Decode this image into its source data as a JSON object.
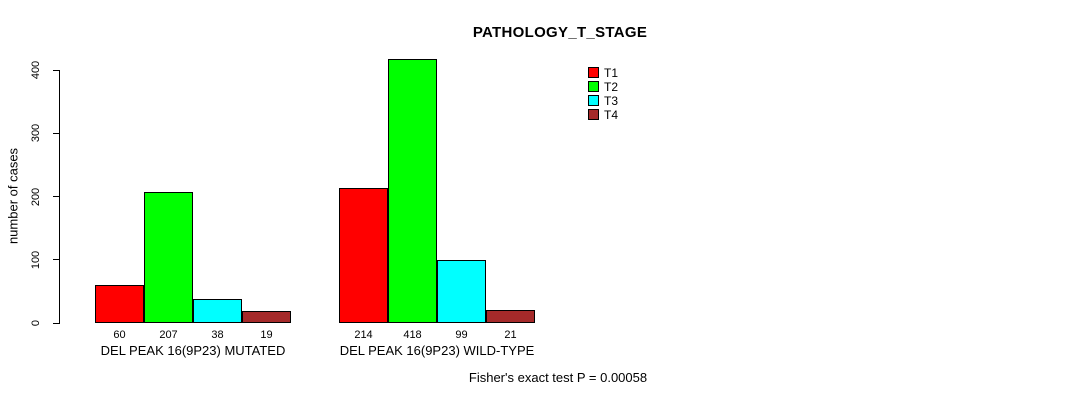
{
  "title": "PATHOLOGY_T_STAGE",
  "footer": {
    "stat_text": "Fisher's exact test P = 0.00058"
  },
  "colors": {
    "t1": "#FF0000",
    "t2": "#00FF00",
    "t3": "#00FFFF",
    "t4": "#A52A2A",
    "axis": "#000000",
    "background": "#FFFFFF"
  },
  "chart_data": {
    "type": "bar",
    "title": "PATHOLOGY_T_STAGE",
    "xlabel": "",
    "ylabel": "number of cases",
    "ylim": [
      0,
      400
    ],
    "yticks": [
      0,
      100,
      200,
      300,
      400
    ],
    "grid": false,
    "legend_position": "top-right",
    "categories": [
      "DEL PEAK 16(9P23) MUTATED",
      "DEL PEAK 16(9P23) WILD-TYPE"
    ],
    "series": [
      {
        "name": "T1",
        "color": "#FF0000",
        "values": [
          60,
          214
        ]
      },
      {
        "name": "T2",
        "color": "#00FF00",
        "values": [
          207,
          418
        ]
      },
      {
        "name": "T3",
        "color": "#00FFFF",
        "values": [
          38,
          99
        ]
      },
      {
        "name": "T4",
        "color": "#A52A2A",
        "values": [
          19,
          21
        ]
      }
    ],
    "bar_value_labels": {
      "DEL PEAK 16(9P23) MUTATED": [
        60,
        207,
        38,
        19
      ],
      "DEL PEAK 16(9P23) WILD-TYPE": [
        214,
        418,
        99,
        21
      ]
    },
    "annotation": "Fisher's exact test P = 0.00058"
  }
}
